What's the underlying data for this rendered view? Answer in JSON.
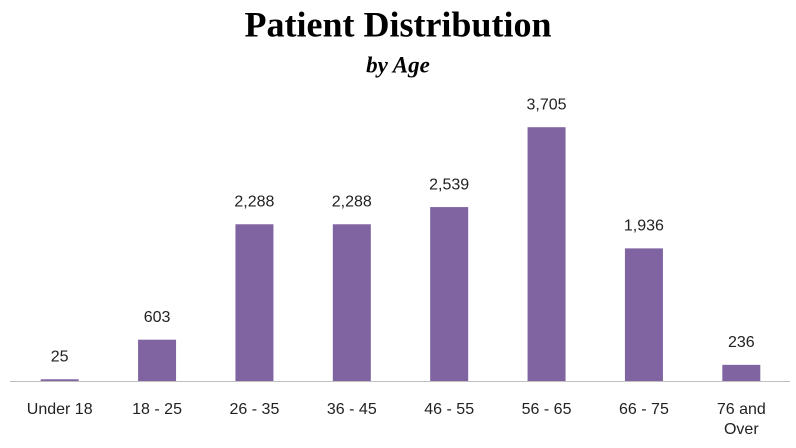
{
  "chart_data": {
    "type": "bar",
    "title": "Patient Distribution",
    "subtitle": "by Age",
    "categories": [
      "Under 18",
      "18 - 25",
      "26 - 35",
      "36 - 45",
      "46 - 55",
      "56 - 65",
      "66 - 75",
      "76 and Over"
    ],
    "values": [
      25,
      603,
      2288,
      2288,
      2539,
      3705,
      1936,
      236
    ],
    "value_labels": [
      "25",
      "603",
      "2,288",
      "2,288",
      "2,539",
      "3,705",
      "1,936",
      "236"
    ],
    "color": "#8064a2",
    "ylim": [
      0,
      4000
    ]
  }
}
